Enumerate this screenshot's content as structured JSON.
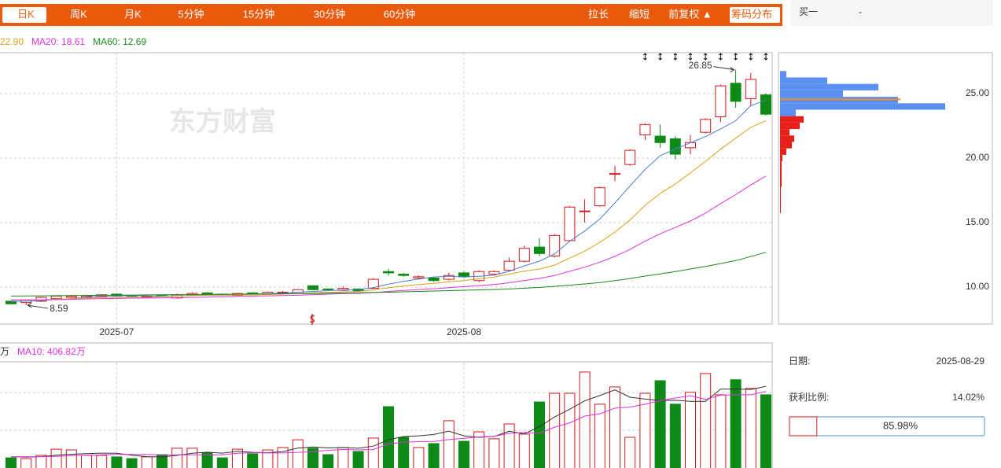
{
  "toolbar": {
    "tabs": [
      {
        "label": "日K",
        "selected": true
      },
      {
        "label": "周K",
        "selected": false
      },
      {
        "label": "月K",
        "selected": false
      },
      {
        "label": "5分钟",
        "selected": false
      },
      {
        "label": "15分钟",
        "selected": false
      },
      {
        "label": "30分钟",
        "selected": false
      },
      {
        "label": "60分钟",
        "selected": false
      }
    ],
    "actions": [
      {
        "label": "拉长",
        "selected": false
      },
      {
        "label": "缩短",
        "selected": false
      },
      {
        "label": "前复权 ▲",
        "selected": false
      },
      {
        "label": "筹码分布",
        "selected": true
      }
    ]
  },
  "side_panel": {
    "bid_label": "买一",
    "bid_value": "-",
    "date_label": "日期:",
    "date": "2025-08-29",
    "profit_label": "获利比例:",
    "profit_ratio": 14.02,
    "profit_ratio_label": "14.02%",
    "loss_ratio": 85.98,
    "loss_ratio_label": "85.98%"
  },
  "chart_data": [
    {
      "type": "candlestick",
      "watermark": "东方财富",
      "high_label": "26.85",
      "low_label": "8.59",
      "categories": [
        null,
        null,
        null,
        null,
        null,
        null,
        null,
        "2025-07",
        null,
        null,
        null,
        null,
        null,
        null,
        null,
        null,
        null,
        null,
        null,
        null,
        null,
        null,
        null,
        null,
        null,
        null,
        null,
        null,
        null,
        null,
        "2025-08",
        null,
        null,
        null,
        null,
        null,
        null,
        null,
        null,
        null,
        null,
        null,
        null,
        null,
        null,
        null,
        null,
        null,
        null,
        null,
        null
      ],
      "open": [
        8.9,
        8.8,
        8.9,
        9.1,
        9.2,
        9.2,
        9.25,
        9.45,
        9.35,
        9.25,
        9.35,
        9.15,
        9.35,
        9.55,
        9.45,
        9.35,
        9.55,
        9.45,
        9.55,
        9.5,
        10.1,
        9.85,
        9.75,
        9.85,
        9.9,
        11.2,
        11.0,
        10.7,
        10.7,
        10.6,
        11.1,
        10.5,
        11.0,
        11.3,
        12.0,
        13.1,
        12.4,
        13.6,
        15.9,
        16.3,
        18.8,
        19.5,
        21.8,
        21.7,
        21.5,
        20.8,
        22.0,
        23.2,
        25.8,
        24.6,
        24.9
      ],
      "high": [
        8.95,
        9.05,
        9.25,
        9.35,
        9.4,
        9.4,
        9.45,
        9.5,
        9.4,
        9.4,
        9.4,
        9.5,
        9.6,
        9.6,
        9.5,
        9.55,
        9.6,
        9.65,
        9.7,
        9.85,
        10.15,
        9.9,
        10.05,
        9.9,
        10.7,
        11.4,
        11.1,
        10.9,
        10.8,
        11.1,
        11.2,
        11.3,
        11.3,
        12.3,
        13.2,
        13.8,
        14.1,
        16.3,
        16.8,
        17.8,
        19.4,
        20.7,
        22.7,
        22.6,
        21.7,
        21.8,
        23.1,
        25.7,
        26.85,
        26.6,
        25.0
      ],
      "low": [
        8.65,
        8.59,
        8.85,
        9.05,
        9.15,
        9.15,
        9.2,
        9.25,
        9.25,
        9.2,
        9.25,
        9.1,
        9.3,
        9.35,
        9.35,
        9.3,
        9.45,
        9.4,
        9.5,
        9.45,
        9.75,
        9.75,
        9.7,
        9.65,
        9.85,
        10.9,
        10.8,
        10.6,
        10.4,
        10.5,
        10.7,
        10.4,
        10.95,
        11.2,
        11.9,
        12.4,
        12.3,
        13.5,
        15.0,
        16.2,
        18.2,
        19.4,
        21.4,
        20.8,
        19.9,
        20.3,
        21.9,
        22.8,
        23.9,
        24.0,
        23.3
      ],
      "close": [
        8.7,
        9.0,
        9.2,
        9.3,
        9.3,
        9.3,
        9.4,
        9.3,
        9.3,
        9.3,
        9.3,
        9.4,
        9.5,
        9.4,
        9.4,
        9.5,
        9.5,
        9.6,
        9.6,
        9.8,
        9.8,
        9.8,
        9.9,
        9.7,
        10.6,
        11.1,
        10.9,
        10.8,
        10.5,
        10.9,
        10.8,
        11.2,
        11.2,
        12.0,
        13.0,
        12.6,
        14.0,
        16.2,
        15.9,
        17.7,
        18.8,
        20.6,
        22.6,
        21.2,
        20.3,
        21.2,
        23.0,
        25.6,
        24.4,
        26.1,
        23.4
      ],
      "up_color": "#d0191b",
      "down_color": "#0e8a16",
      "ma_lines": [
        {
          "color": "#4a7fd6",
          "values": [
            8.9,
            8.9,
            8.95,
            9.05,
            9.1,
            9.22,
            9.3,
            9.32,
            9.34,
            9.32,
            9.3,
            9.32,
            9.36,
            9.38,
            9.4,
            9.44,
            9.46,
            9.48,
            9.52,
            9.6,
            9.66,
            9.72,
            9.78,
            9.8,
            9.96,
            10.22,
            10.44,
            10.62,
            10.78,
            10.84,
            10.78,
            10.84,
            10.92,
            11.22,
            11.64,
            12.0,
            12.56,
            13.56,
            14.34,
            15.28,
            16.52,
            17.84,
            19.12,
            20.18,
            20.7,
            21.18,
            21.66,
            22.26,
            22.9,
            24.06,
            24.5
          ]
        },
        {
          "legend": "22.90",
          "color": "#d9a21b",
          "values": [
            9.0,
            9.0,
            9.0,
            9.05,
            9.1,
            9.15,
            9.2,
            9.2,
            9.22,
            9.2,
            9.26,
            9.31,
            9.34,
            9.36,
            9.36,
            9.37,
            9.39,
            9.42,
            9.45,
            9.5,
            9.55,
            9.59,
            9.63,
            9.66,
            9.78,
            9.94,
            10.08,
            10.2,
            10.29,
            10.4,
            10.5,
            10.64,
            10.77,
            11.0,
            11.24,
            11.39,
            11.7,
            12.24,
            12.78,
            13.46,
            14.26,
            15.2,
            16.34,
            17.26,
            17.99,
            18.85,
            19.75,
            20.69,
            21.54,
            22.38,
            22.9
          ]
        },
        {
          "legend": "MA20: 18.61",
          "color": "#e030e0",
          "values": [
            9.0,
            9.0,
            9.0,
            9.02,
            9.05,
            9.08,
            9.1,
            9.12,
            9.14,
            9.15,
            9.16,
            9.18,
            9.2,
            9.22,
            9.24,
            9.27,
            9.3,
            9.32,
            9.34,
            9.36,
            9.41,
            9.45,
            9.49,
            9.51,
            9.57,
            9.66,
            9.74,
            9.81,
            9.87,
            9.95,
            10.03,
            10.12,
            10.2,
            10.33,
            10.51,
            10.67,
            10.89,
            11.22,
            11.54,
            11.93,
            12.38,
            12.92,
            13.56,
            14.13,
            14.62,
            15.12,
            15.73,
            16.47,
            17.16,
            17.92,
            18.61
          ]
        },
        {
          "legend": "MA60: 12.69",
          "color": "#1a8a1a",
          "values": [
            9.3,
            9.31,
            9.32,
            9.33,
            9.34,
            9.35,
            9.36,
            9.37,
            9.38,
            9.39,
            9.4,
            9.41,
            9.42,
            9.43,
            9.44,
            9.45,
            9.46,
            9.47,
            9.48,
            9.49,
            9.5,
            9.52,
            9.54,
            9.56,
            9.58,
            9.6,
            9.63,
            9.66,
            9.69,
            9.72,
            9.75,
            9.78,
            9.81,
            9.85,
            9.91,
            9.97,
            10.05,
            10.14,
            10.24,
            10.35,
            10.5,
            10.66,
            10.85,
            11.02,
            11.2,
            11.4,
            11.6,
            11.82,
            12.05,
            12.36,
            12.69
          ]
        }
      ],
      "ylim": [
        7.13,
        28.17
      ],
      "yticks": [
        {
          "value": 10,
          "label": "10.00"
        },
        {
          "value": 15,
          "label": "15.00"
        },
        {
          "value": 20,
          "label": "20.00"
        },
        {
          "value": 25,
          "label": "25.00"
        }
      ],
      "grid": true
    },
    {
      "type": "bar",
      "values": [
        54,
        50,
        67,
        100,
        96,
        67,
        67,
        59,
        50,
        59,
        71,
        105,
        105,
        80,
        54,
        100,
        75,
        96,
        109,
        150,
        105,
        71,
        109,
        88,
        159,
        326,
        163,
        109,
        130,
        251,
        142,
        192,
        155,
        234,
        180,
        351,
        397,
        397,
        510,
        339,
        431,
        163,
        397,
        464,
        339,
        402,
        502,
        389,
        469,
        423,
        389
      ],
      "ma_lines": [
        {
          "legend": "万",
          "color": "#333333",
          "values": [
            60,
            58,
            60,
            68,
            73,
            76,
            79,
            78,
            68,
            60,
            59,
            67,
            78,
            84,
            79,
            89,
            83,
            81,
            87,
            106,
            112,
            107,
            109,
            105,
            116,
            150,
            167,
            171,
            178,
            196,
            171,
            163,
            168,
            195,
            181,
            220,
            271,
            312,
            357,
            385,
            415,
            376,
            366,
            359,
            360,
            354,
            354,
            419,
            420,
            417,
            434
          ]
        },
        {
          "legend": "MA10: 406.82万",
          "color": "#e030e0",
          "values": [
            60,
            60,
            60,
            62,
            65,
            68,
            70,
            72,
            72,
            72,
            69,
            70,
            70,
            70,
            70,
            78,
            81,
            80,
            80,
            83,
            87,
            94,
            98,
            96,
            98,
            128,
            137,
            140,
            141,
            151,
            158,
            165,
            169,
            184,
            189,
            185,
            217,
            240,
            276,
            288,
            318,
            324,
            339,
            358,
            372,
            384,
            365,
            387,
            389,
            389,
            406.82
          ]
        }
      ],
      "ylim": [
        0,
        560
      ],
      "gridlines": [
        200,
        400
      ]
    },
    {
      "type": "chip_distribution",
      "prices": [
        26.5,
        26,
        25.5,
        25,
        24.5,
        24,
        23.5,
        23,
        22.5,
        22,
        21.5,
        21,
        20.5,
        20,
        19.5,
        19,
        18.5,
        18,
        17.5,
        17,
        16.5,
        16
      ],
      "values": [
        8,
        60,
        125,
        80,
        150,
        210,
        20,
        30,
        25,
        12,
        18,
        15,
        8,
        3,
        2,
        2,
        2,
        2,
        1,
        1,
        1,
        1
      ],
      "avg_cost": 24.55,
      "avg_cost_color": "#f08a24",
      "colors": {
        "above": "#5b8ff0",
        "below": "#e8201a"
      }
    }
  ]
}
